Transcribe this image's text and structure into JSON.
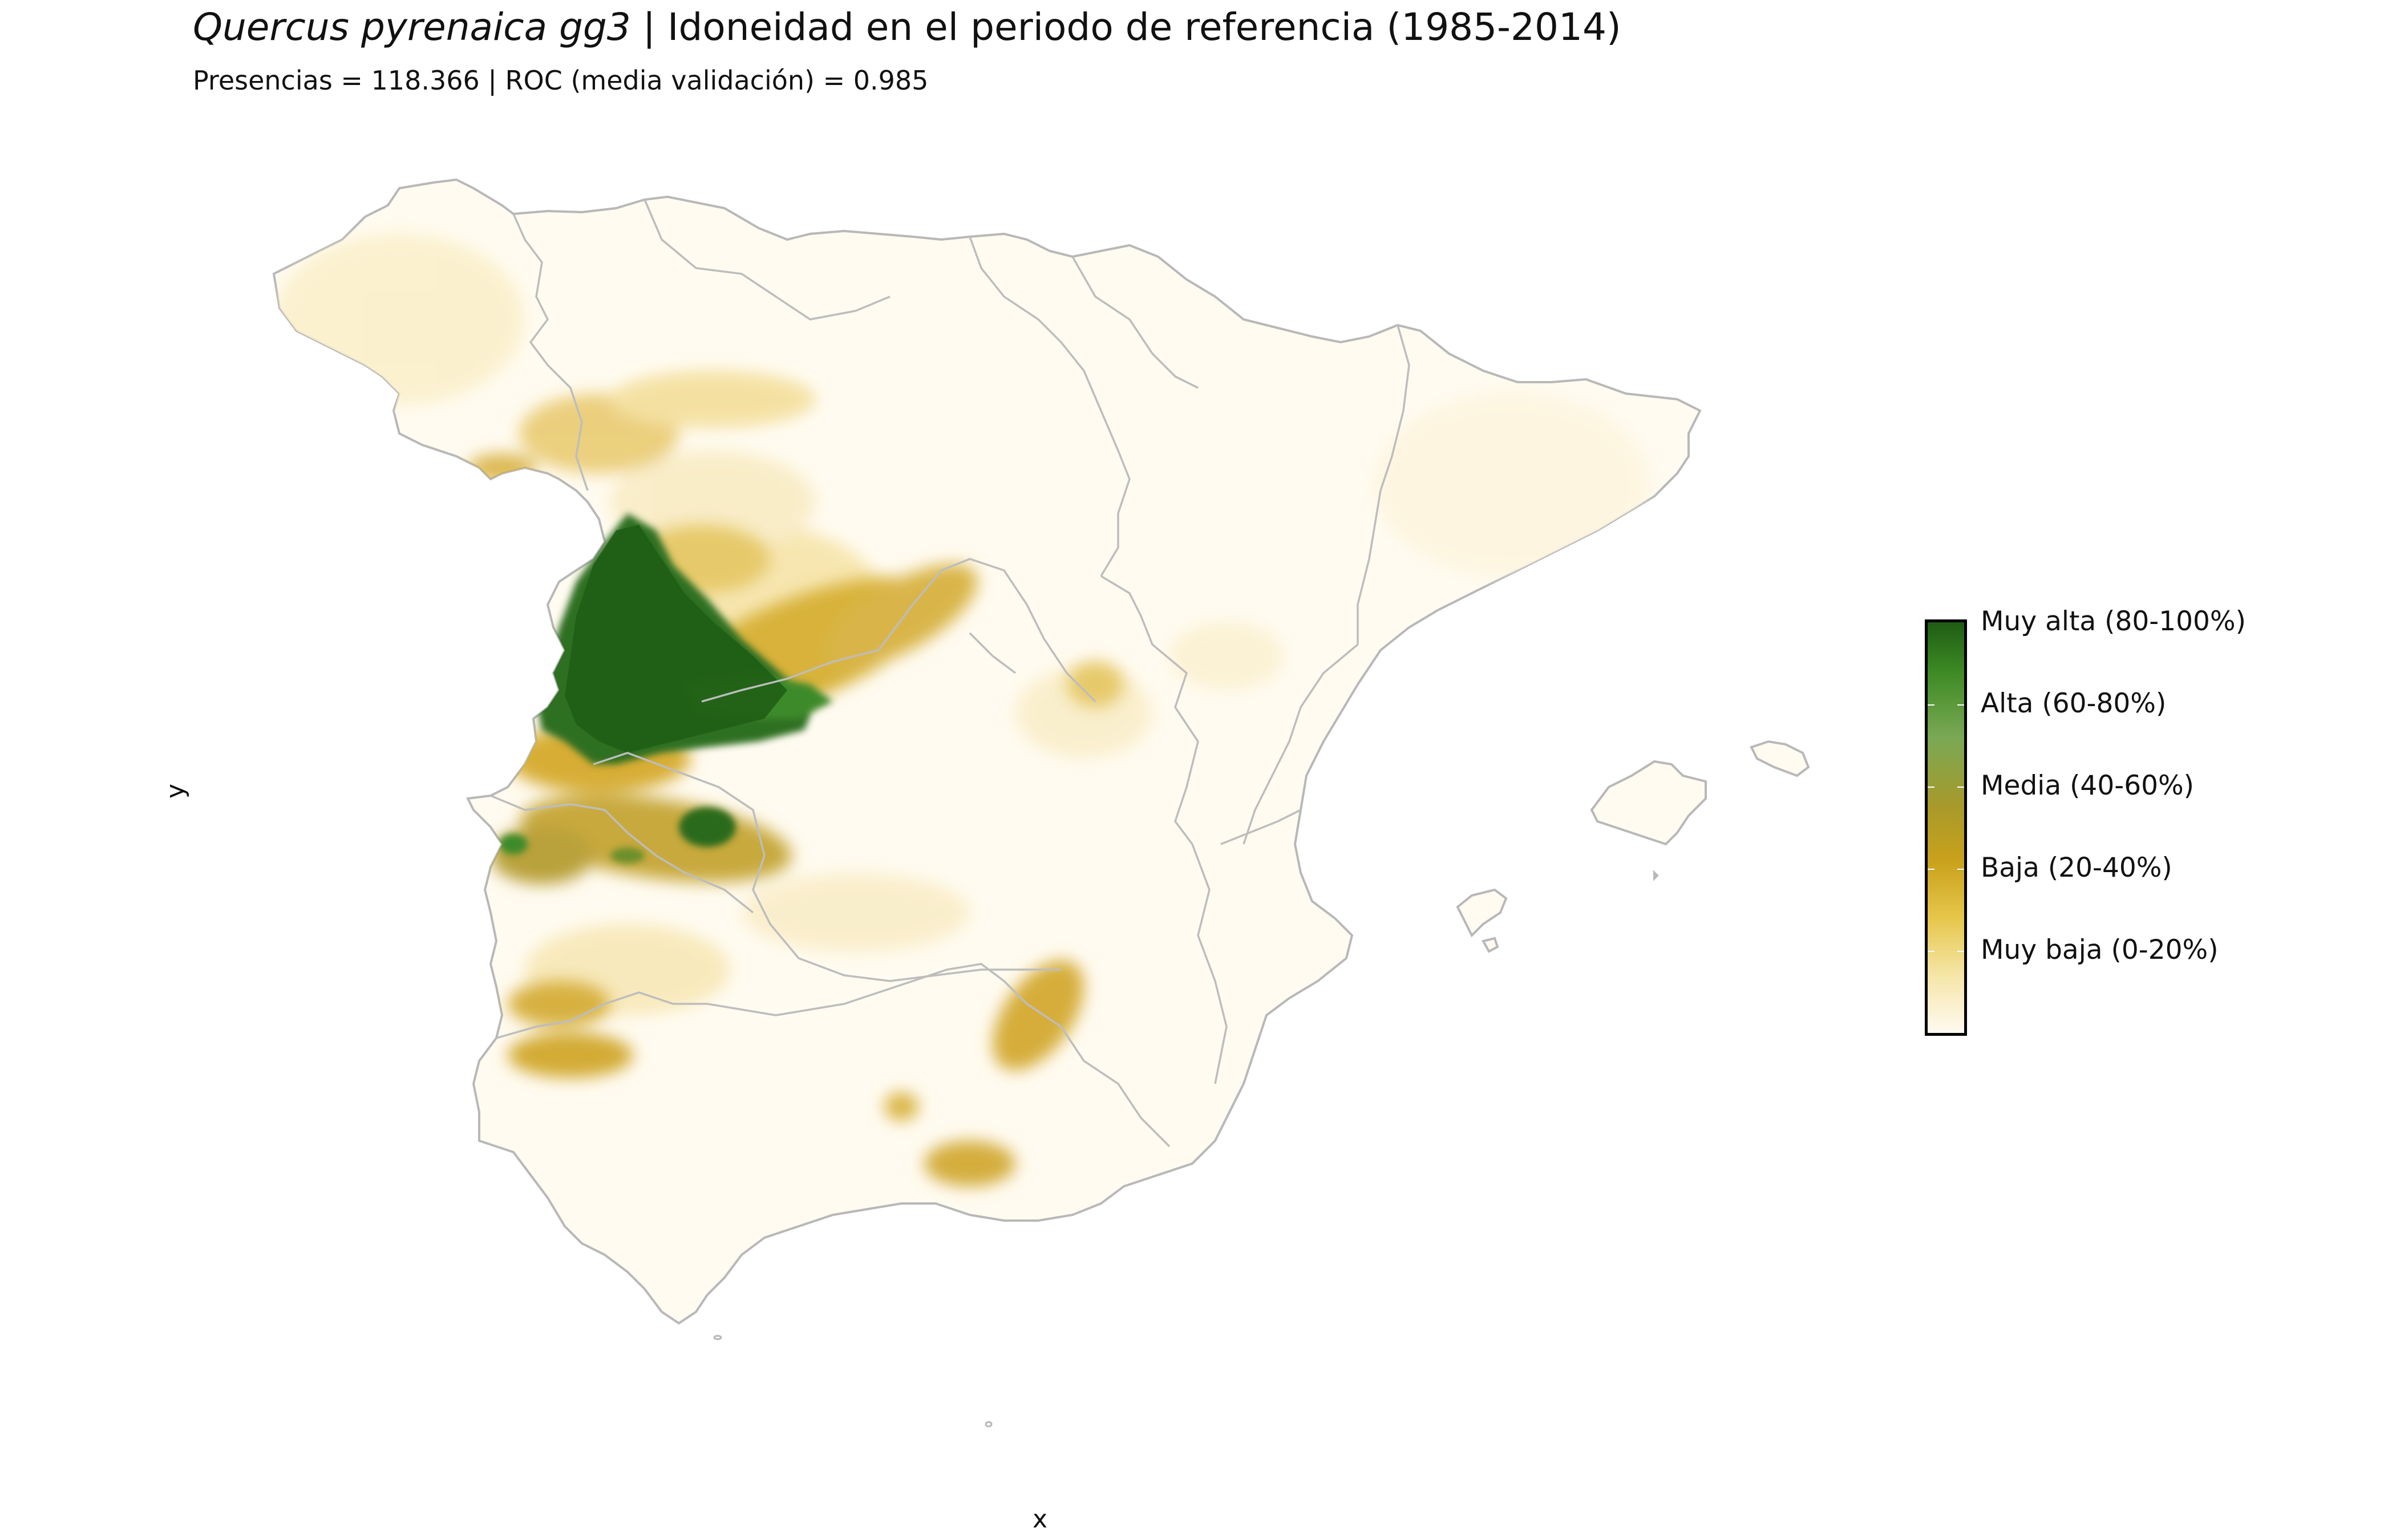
{
  "title": {
    "species": "Quercus pyrenaica gg3",
    "rest": " | Idoneidad en el periodo de referencia (1985-2014)"
  },
  "subtitle": "Presencias = 118.366  |  ROC (media validación) = 0.985",
  "axes": {
    "x_label": "x",
    "y_label": "y"
  },
  "legend": {
    "items": [
      {
        "label": "Muy alta (80-100%)",
        "color": "#1e5c14"
      },
      {
        "label": "Alta (60-80%)",
        "color": "#7aa854"
      },
      {
        "label": "Media (40-60%)",
        "color": "#a89a2a"
      },
      {
        "label": "Baja (20-40%)",
        "color": "#c9a11c"
      },
      {
        "label": "Muy baja (0-20%)",
        "color": "#f2d870"
      }
    ]
  },
  "colors": {
    "background_land": "#fffbf0",
    "border": "#b8b8b8",
    "very_high": "#1e5c14",
    "high": "#4f8a2c",
    "medium": "#a89a2a",
    "low": "#d4aa2e",
    "very_low": "#f4e2a2"
  }
}
